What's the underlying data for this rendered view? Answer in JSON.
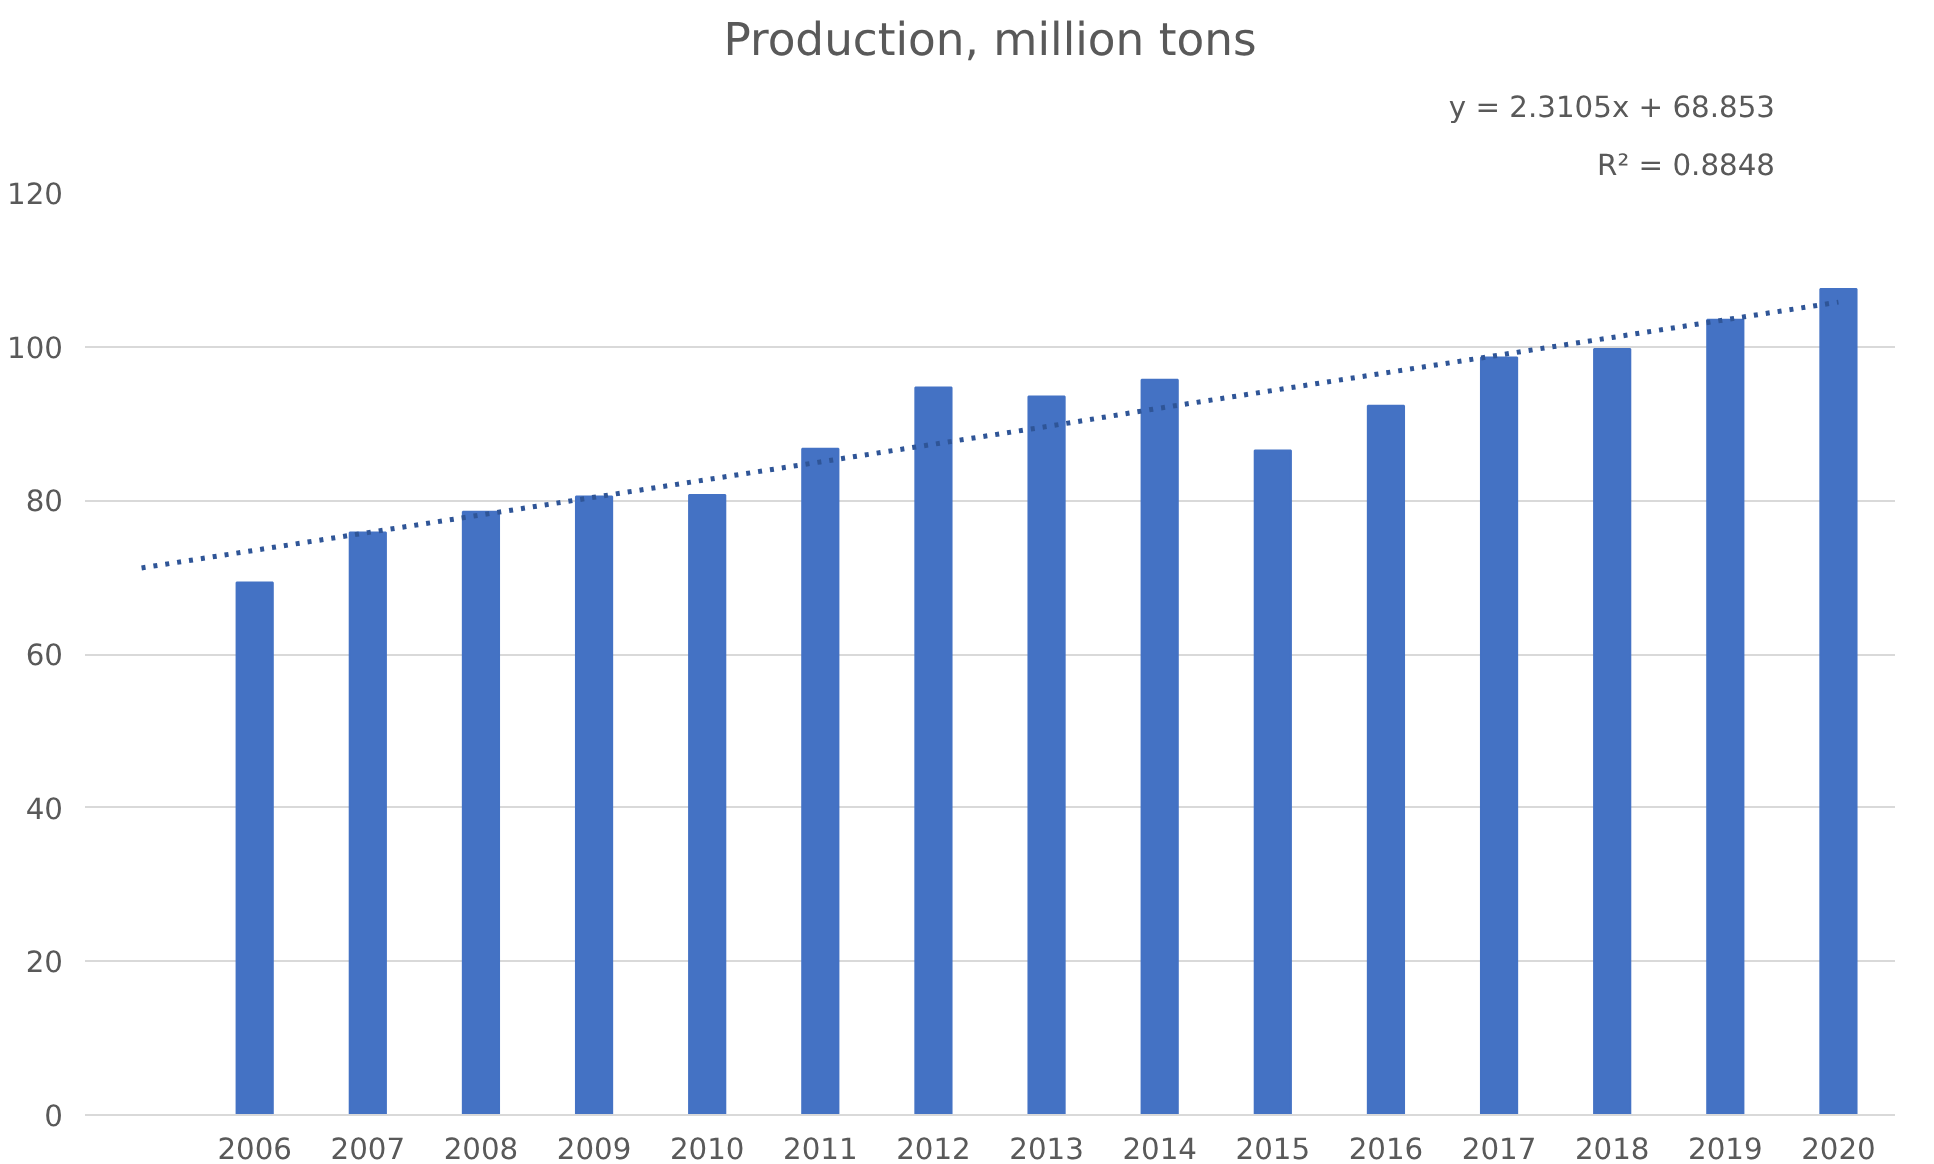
{
  "chart_data": {
    "type": "bar",
    "title": "Production, million tons",
    "categories": [
      null,
      "2006",
      "2007",
      "2008",
      "2009",
      "2010",
      "2011",
      "2012",
      "2013",
      "2014",
      "2015",
      "2016",
      "2017",
      "2018",
      "2019",
      "2020"
    ],
    "series": [
      {
        "color": "#4472c4",
        "values": [
          null,
          69.3,
          75.8,
          78.5,
          80.5,
          80.7,
          86.7,
          94.7,
          93.5,
          95.7,
          86.5,
          92.3,
          98.6,
          99.7,
          103.5,
          107.5
        ]
      },
      {
        "type": "line",
        "color": "#2f5597",
        "line_style": "dotted",
        "values": [
          71.2,
          73.5,
          75.8,
          78.1,
          80.4,
          82.7,
          85.0,
          87.3,
          89.6,
          92.0,
          94.3,
          96.6,
          98.9,
          101.2,
          103.5,
          105.8
        ]
      }
    ],
    "annotations": [
      "y = 2.3105x + 68.853",
      "R² = 0.8848"
    ],
    "ylim": [
      0,
      120
    ],
    "yticks": [
      0,
      20,
      40,
      60,
      80,
      100,
      120
    ],
    "grid": "y"
  }
}
